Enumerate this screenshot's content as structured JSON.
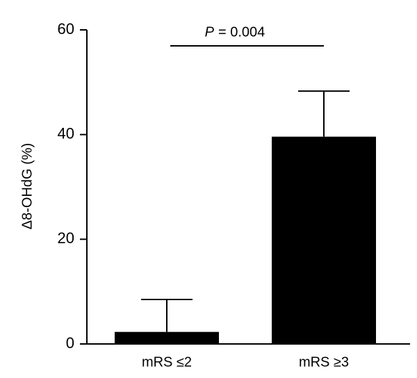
{
  "chart_data": {
    "type": "bar",
    "y_label": "Δ8-OHdG (%)",
    "categories": [
      "mRS ≤2",
      "mRS ≥3"
    ],
    "values": [
      2.3,
      39.6
    ],
    "errors": [
      6.2,
      8.7
    ],
    "color": "#000000",
    "ylim": [
      0,
      60
    ],
    "yticks": [
      0,
      20,
      40,
      60
    ],
    "annotation": {
      "italic": "P",
      "text": "= 0.004"
    }
  }
}
